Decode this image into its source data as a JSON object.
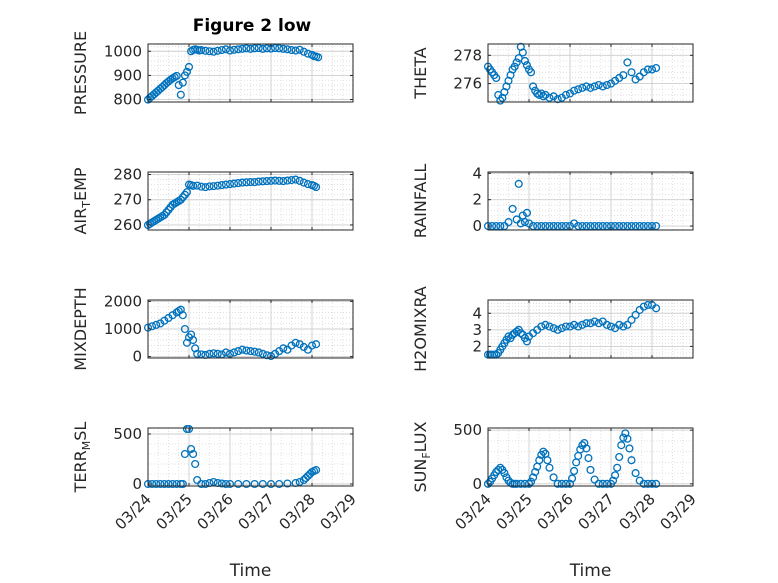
{
  "figure_title": "Figure 2 low",
  "colors": {
    "marker": "#0072BD",
    "axis": "#262626",
    "grid": "#d9d9d9"
  },
  "chart_data": [
    {
      "type": "scatter",
      "ylabel": "PRESSURE",
      "xlabel": "",
      "title": "Figure 2 low",
      "xlim": [
        24,
        29
      ],
      "ylim": [
        790,
        1030
      ],
      "yticks": [
        800,
        900,
        1000
      ],
      "xticks": [
        24,
        25,
        26,
        27,
        28,
        29
      ],
      "xtick_labels": [
        "",
        "",
        "",
        "",
        "",
        ""
      ],
      "grid": true,
      "x": [
        24.0,
        24.05,
        24.1,
        24.15,
        24.2,
        24.25,
        24.3,
        24.35,
        24.4,
        24.45,
        24.5,
        24.55,
        24.6,
        24.65,
        24.7,
        24.75,
        24.8,
        24.85,
        24.9,
        24.95,
        25.0,
        25.05,
        25.1,
        25.15,
        25.2,
        25.25,
        25.3,
        25.4,
        25.5,
        25.6,
        25.7,
        25.8,
        25.9,
        26.0,
        26.1,
        26.2,
        26.3,
        26.4,
        26.5,
        26.6,
        26.7,
        26.8,
        26.9,
        27.0,
        27.1,
        27.2,
        27.3,
        27.4,
        27.5,
        27.6,
        27.7,
        27.8,
        27.9,
        28.0,
        28.05,
        28.1,
        28.15
      ],
      "y": [
        800,
        808,
        815,
        822,
        830,
        837,
        845,
        852,
        860,
        868,
        875,
        882,
        888,
        893,
        898,
        860,
        820,
        870,
        900,
        915,
        935,
        1000,
        1005,
        1008,
        1006,
        1003,
        1005,
        1002,
        1000,
        998,
        1002,
        1005,
        1008,
        1003,
        1006,
        1008,
        1010,
        1012,
        1010,
        1012,
        1013,
        1010,
        1012,
        1011,
        1013,
        1012,
        1010,
        1008,
        1005,
        1003,
        1006,
        998,
        990,
        985,
        980,
        978,
        975
      ]
    },
    {
      "type": "scatter",
      "ylabel": "THETA",
      "xlabel": "",
      "xlim": [
        24,
        29
      ],
      "ylim": [
        274.7,
        278.8
      ],
      "yticks": [
        276,
        278
      ],
      "xticks": [
        24,
        25,
        26,
        27,
        28,
        29
      ],
      "xtick_labels": [
        "",
        "",
        "",
        "",
        "",
        ""
      ],
      "grid": true,
      "x": [
        24.0,
        24.05,
        24.1,
        24.15,
        24.2,
        24.25,
        24.3,
        24.35,
        24.4,
        24.45,
        24.5,
        24.55,
        24.6,
        24.65,
        24.7,
        24.75,
        24.8,
        24.85,
        24.9,
        24.95,
        25.0,
        25.05,
        25.1,
        25.15,
        25.2,
        25.25,
        25.3,
        25.35,
        25.4,
        25.5,
        25.6,
        25.7,
        25.8,
        25.9,
        26.0,
        26.1,
        26.2,
        26.3,
        26.4,
        26.5,
        26.6,
        26.7,
        26.8,
        26.9,
        27.0,
        27.1,
        27.2,
        27.3,
        27.4,
        27.5,
        27.6,
        27.7,
        27.8,
        27.9,
        28.0,
        28.1
      ],
      "y": [
        277.2,
        277.0,
        276.8,
        276.6,
        276.4,
        275.2,
        274.8,
        275.0,
        275.4,
        275.8,
        276.2,
        276.6,
        277.0,
        277.2,
        277.5,
        277.8,
        278.6,
        278.2,
        277.6,
        277.3,
        277.0,
        276.8,
        275.8,
        275.5,
        275.3,
        275.2,
        275.3,
        275.1,
        275.2,
        275.0,
        275.1,
        274.9,
        275.0,
        275.2,
        275.3,
        275.5,
        275.6,
        275.7,
        275.8,
        275.7,
        275.8,
        275.9,
        275.8,
        275.9,
        276.0,
        276.2,
        276.4,
        276.6,
        277.5,
        276.8,
        276.3,
        276.5,
        276.8,
        277.0,
        277.0,
        277.1
      ]
    },
    {
      "type": "scatter",
      "ylabel": "AIR_TEMP",
      "xlabel": "",
      "xlim": [
        24,
        29
      ],
      "ylim": [
        258,
        281
      ],
      "yticks": [
        260,
        270,
        280
      ],
      "xticks": [
        24,
        25,
        26,
        27,
        28,
        29
      ],
      "xtick_labels": [
        "",
        "",
        "",
        "",
        "",
        ""
      ],
      "grid": true,
      "x": [
        24.0,
        24.05,
        24.1,
        24.15,
        24.2,
        24.25,
        24.3,
        24.35,
        24.4,
        24.45,
        24.5,
        24.55,
        24.6,
        24.65,
        24.7,
        24.75,
        24.8,
        24.85,
        24.9,
        24.95,
        25.0,
        25.05,
        25.1,
        25.2,
        25.3,
        25.4,
        25.5,
        25.6,
        25.7,
        25.8,
        25.9,
        26.0,
        26.1,
        26.2,
        26.3,
        26.4,
        26.5,
        26.6,
        26.7,
        26.8,
        26.9,
        27.0,
        27.1,
        27.2,
        27.3,
        27.4,
        27.5,
        27.6,
        27.7,
        27.8,
        27.9,
        28.0,
        28.05,
        28.1
      ],
      "y": [
        260,
        260.5,
        261,
        261.5,
        262,
        262.5,
        263,
        263.5,
        264,
        265,
        266,
        267,
        268,
        268.5,
        269,
        269.5,
        270,
        271,
        272,
        273,
        276,
        275.8,
        275.5,
        275.6,
        275.2,
        275.0,
        275.3,
        275.4,
        275.6,
        275.8,
        276.0,
        276.2,
        276.4,
        276.6,
        276.8,
        276.9,
        277.0,
        277.0,
        277.2,
        277.3,
        277.4,
        277.5,
        277.6,
        277.5,
        277.4,
        277.6,
        277.8,
        278.0,
        277.5,
        276.8,
        276.2,
        275.8,
        275.5,
        275.0
      ]
    },
    {
      "type": "scatter",
      "ylabel": "RAINFALL",
      "xlabel": "",
      "xlim": [
        24,
        29
      ],
      "ylim": [
        -0.3,
        4.1
      ],
      "yticks": [
        0,
        2,
        4
      ],
      "xticks": [
        24,
        25,
        26,
        27,
        28,
        29
      ],
      "xtick_labels": [
        "",
        "",
        "",
        "",
        "",
        ""
      ],
      "grid": true,
      "x": [
        24.0,
        24.1,
        24.2,
        24.3,
        24.4,
        24.5,
        24.6,
        24.7,
        24.75,
        24.8,
        24.85,
        24.9,
        24.95,
        25.0,
        25.1,
        25.2,
        25.3,
        25.4,
        25.5,
        25.6,
        25.7,
        25.8,
        25.9,
        26.0,
        26.1,
        26.2,
        26.3,
        26.4,
        26.5,
        26.6,
        26.7,
        26.8,
        26.9,
        27.0,
        27.1,
        27.2,
        27.3,
        27.4,
        27.5,
        27.6,
        27.7,
        27.8,
        27.9,
        28.0,
        28.1
      ],
      "y": [
        0,
        0,
        0,
        0,
        0,
        0.3,
        1.3,
        0.5,
        3.2,
        0.2,
        0.8,
        0.3,
        1.0,
        0.2,
        0,
        0,
        0,
        0,
        0,
        0,
        0,
        0,
        0,
        0,
        0.2,
        0,
        0,
        0,
        0,
        0,
        0,
        0,
        0,
        0,
        0,
        0,
        0,
        0,
        0,
        0,
        0,
        0,
        0,
        0,
        0
      ]
    },
    {
      "type": "scatter",
      "ylabel": "MIXDEPTH",
      "xlabel": "",
      "xlim": [
        24,
        29
      ],
      "ylim": [
        -50,
        2050
      ],
      "yticks": [
        0,
        1000,
        2000
      ],
      "xticks": [
        24,
        25,
        26,
        27,
        28,
        29
      ],
      "xtick_labels": [
        "",
        "",
        "",
        "",
        "",
        ""
      ],
      "grid": true,
      "x": [
        24.0,
        24.1,
        24.2,
        24.3,
        24.4,
        24.5,
        24.6,
        24.7,
        24.75,
        24.8,
        24.85,
        24.9,
        24.95,
        25.0,
        25.05,
        25.1,
        25.15,
        25.2,
        25.3,
        25.4,
        25.5,
        25.6,
        25.7,
        25.8,
        25.9,
        26.0,
        26.1,
        26.2,
        26.3,
        26.4,
        26.5,
        26.6,
        26.7,
        26.8,
        26.9,
        27.0,
        27.1,
        27.2,
        27.3,
        27.4,
        27.5,
        27.6,
        27.7,
        27.8,
        27.9,
        28.0,
        28.1
      ],
      "y": [
        1050,
        1100,
        1150,
        1200,
        1300,
        1400,
        1500,
        1600,
        1650,
        1700,
        1500,
        1000,
        500,
        700,
        800,
        600,
        300,
        100,
        80,
        60,
        100,
        120,
        100,
        80,
        150,
        100,
        150,
        200,
        250,
        220,
        200,
        180,
        150,
        100,
        50,
        20,
        100,
        200,
        300,
        250,
        400,
        500,
        450,
        350,
        250,
        400,
        450
      ]
    },
    {
      "type": "scatter",
      "ylabel": "H2OMIXRA",
      "xlabel": "",
      "xlim": [
        24,
        29
      ],
      "ylim": [
        1.3,
        4.8
      ],
      "yticks": [
        2,
        3,
        4
      ],
      "xticks": [
        24,
        25,
        26,
        27,
        28,
        29
      ],
      "xtick_labels": [
        "",
        "",
        "",
        "",
        "",
        ""
      ],
      "grid": true,
      "x": [
        24.0,
        24.05,
        24.1,
        24.15,
        24.2,
        24.25,
        24.3,
        24.35,
        24.4,
        24.45,
        24.5,
        24.55,
        24.6,
        24.65,
        24.7,
        24.75,
        24.8,
        24.85,
        24.9,
        24.95,
        25.0,
        25.1,
        25.2,
        25.3,
        25.4,
        25.5,
        25.6,
        25.7,
        25.8,
        25.9,
        26.0,
        26.1,
        26.2,
        26.3,
        26.4,
        26.5,
        26.6,
        26.7,
        26.8,
        26.9,
        27.0,
        27.1,
        27.2,
        27.3,
        27.4,
        27.5,
        27.6,
        27.7,
        27.8,
        27.9,
        28.0,
        28.1
      ],
      "y": [
        1.5,
        1.5,
        1.5,
        1.5,
        1.5,
        1.6,
        1.8,
        2.0,
        2.2,
        2.4,
        2.6,
        2.5,
        2.7,
        2.8,
        2.9,
        3.0,
        2.8,
        2.7,
        2.5,
        2.3,
        2.6,
        2.8,
        3.0,
        3.2,
        3.3,
        3.2,
        3.1,
        3.0,
        3.1,
        3.2,
        3.2,
        3.3,
        3.2,
        3.3,
        3.4,
        3.4,
        3.5,
        3.4,
        3.5,
        3.3,
        3.2,
        3.1,
        3.3,
        3.2,
        3.3,
        3.6,
        3.9,
        4.2,
        4.4,
        4.5,
        4.5,
        4.3
      ]
    },
    {
      "type": "scatter",
      "ylabel": "TERR_MSL",
      "xlabel": "Time",
      "xlim": [
        24,
        29
      ],
      "ylim": [
        -20,
        560
      ],
      "yticks": [
        0,
        500
      ],
      "xticks": [
        24,
        25,
        26,
        27,
        28,
        29
      ],
      "xtick_labels": [
        "03/24",
        "03/25",
        "03/26",
        "03/27",
        "03/28",
        "03/29"
      ],
      "grid": true,
      "x": [
        24.0,
        24.1,
        24.2,
        24.3,
        24.4,
        24.5,
        24.6,
        24.7,
        24.8,
        24.85,
        24.9,
        24.95,
        25.0,
        25.05,
        25.1,
        25.15,
        25.2,
        25.3,
        25.4,
        25.5,
        25.6,
        25.7,
        25.8,
        25.9,
        26.0,
        26.2,
        26.4,
        26.6,
        26.8,
        27.0,
        27.2,
        27.4,
        27.6,
        27.7,
        27.8,
        27.85,
        27.9,
        27.95,
        28.0,
        28.05,
        28.1
      ],
      "y": [
        0,
        0,
        0,
        0,
        0,
        0,
        0,
        0,
        0,
        0,
        300,
        550,
        550,
        350,
        300,
        200,
        40,
        0,
        0,
        10,
        20,
        10,
        5,
        0,
        0,
        0,
        0,
        0,
        0,
        0,
        0,
        5,
        10,
        20,
        40,
        60,
        80,
        100,
        120,
        130,
        140
      ]
    },
    {
      "type": "scatter",
      "ylabel": "SUN_FLUX",
      "xlabel": "Time",
      "xlim": [
        24,
        29
      ],
      "ylim": [
        -20,
        520
      ],
      "yticks": [
        0,
        500
      ],
      "xticks": [
        24,
        25,
        26,
        27,
        28,
        29
      ],
      "xtick_labels": [
        "03/24",
        "03/25",
        "03/26",
        "03/27",
        "03/28",
        "03/29"
      ],
      "grid": true,
      "x": [
        24.0,
        24.05,
        24.1,
        24.15,
        24.2,
        24.25,
        24.3,
        24.35,
        24.4,
        24.45,
        24.5,
        24.55,
        24.6,
        24.65,
        24.7,
        24.8,
        24.9,
        25.0,
        25.05,
        25.1,
        25.15,
        25.2,
        25.25,
        25.3,
        25.35,
        25.4,
        25.45,
        25.5,
        25.6,
        25.7,
        25.8,
        25.9,
        26.0,
        26.05,
        26.1,
        26.15,
        26.2,
        26.25,
        26.3,
        26.35,
        26.4,
        26.45,
        26.5,
        26.6,
        26.7,
        26.8,
        26.9,
        27.0,
        27.05,
        27.1,
        27.15,
        27.2,
        27.25,
        27.3,
        27.35,
        27.4,
        27.45,
        27.5,
        27.6,
        27.7,
        27.8,
        27.9,
        28.0,
        28.1
      ],
      "y": [
        0,
        20,
        50,
        80,
        110,
        130,
        150,
        130,
        100,
        60,
        30,
        10,
        0,
        0,
        0,
        0,
        0,
        0,
        20,
        60,
        110,
        160,
        220,
        270,
        300,
        280,
        220,
        150,
        60,
        0,
        0,
        0,
        0,
        50,
        120,
        200,
        260,
        320,
        360,
        380,
        330,
        240,
        130,
        40,
        0,
        0,
        0,
        0,
        30,
        80,
        150,
        250,
        360,
        430,
        470,
        420,
        330,
        220,
        100,
        30,
        0,
        0,
        0,
        0
      ]
    }
  ]
}
